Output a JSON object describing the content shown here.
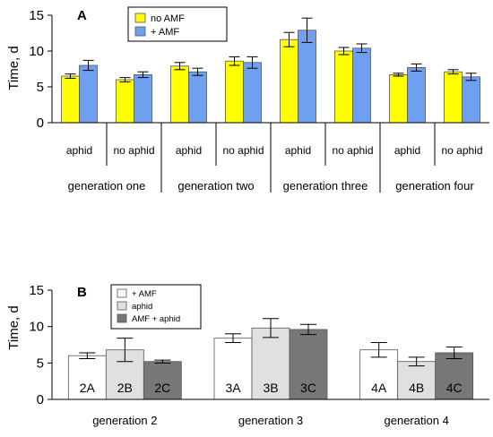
{
  "chart_data": [
    {
      "panel": "A",
      "type": "bar",
      "ylabel": "Time, d",
      "ylim": [
        0,
        15
      ],
      "yticks": [
        "0",
        "5",
        "10",
        "15"
      ],
      "legend_position": "top-center",
      "groups": [
        "generation one",
        "generation two",
        "generation three",
        "generation four"
      ],
      "conditions": [
        "aphid",
        "no aphid"
      ],
      "series": [
        {
          "name": "no AMF",
          "color": "#ffff00",
          "values": [
            6.5,
            6.0,
            7.9,
            8.6,
            11.6,
            10.0,
            6.7,
            7.1
          ],
          "errors": [
            0.3,
            0.3,
            0.5,
            0.6,
            1.0,
            0.5,
            0.2,
            0.3
          ]
        },
        {
          "name": "+ AMF",
          "color": "#6fa0f0",
          "values": [
            8.0,
            6.7,
            7.1,
            8.4,
            12.9,
            10.4,
            7.7,
            6.4
          ],
          "errors": [
            0.7,
            0.4,
            0.5,
            0.8,
            1.7,
            0.6,
            0.5,
            0.5
          ]
        }
      ]
    },
    {
      "panel": "B",
      "type": "bar",
      "ylabel": "Time, d",
      "ylim": [
        0,
        15
      ],
      "yticks": [
        "0",
        "5",
        "10",
        "15"
      ],
      "legend_position": "top-left",
      "groups": [
        "generation 2",
        "generation 3",
        "generation 4"
      ],
      "series": [
        {
          "name": "+ AMF",
          "color": "#ffffff",
          "values": [
            6.0,
            8.4,
            6.8
          ],
          "errors": [
            0.4,
            0.6,
            1.0
          ],
          "labels": [
            "2A",
            "3A",
            "4A"
          ]
        },
        {
          "name": "aphid",
          "color": "#e0e0e0",
          "values": [
            6.8,
            9.8,
            5.2
          ],
          "errors": [
            1.6,
            1.3,
            0.6
          ],
          "labels": [
            "2B",
            "3B",
            "4B"
          ]
        },
        {
          "name": "AMF + aphid",
          "color": "#777777",
          "values": [
            5.2,
            9.6,
            6.4
          ],
          "errors": [
            0.2,
            0.7,
            0.8
          ],
          "labels": [
            "2C",
            "3C",
            "4C"
          ]
        }
      ]
    }
  ]
}
